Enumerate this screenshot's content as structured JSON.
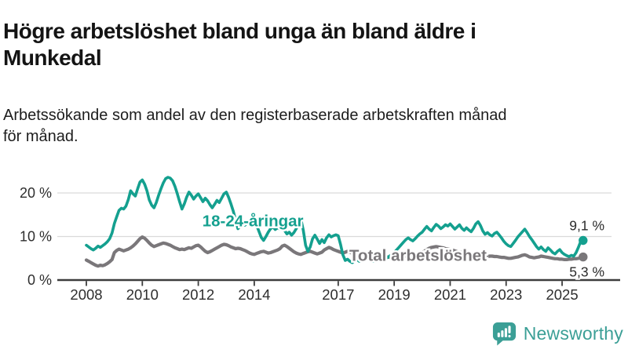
{
  "header": {
    "title_line1": "Högre arbetslöshet bland unga än bland äldre i",
    "title_line2": "Munkedal",
    "subtitle_line1": "Arbetssökande som andel av den registerbaserade arbetskraften månad",
    "subtitle_line2": "för månad."
  },
  "footer": {
    "brand": "Newsworthy",
    "logo_color": "#3b9f96"
  },
  "chart_data": {
    "type": "line",
    "title": "Högre arbetslöshet bland unga än bland äldre i Munkedal",
    "subtitle": "Arbetssökande som andel av den registerbaserade arbetskraften månad för månad.",
    "unit": "%",
    "x_range": [
      2008.0,
      2025.75
    ],
    "ylim": [
      0,
      25
    ],
    "grid": true,
    "legend_position": "inline-labels",
    "yticks": [
      {
        "value": 0,
        "label": "0 %"
      },
      {
        "value": 10,
        "label": "10 %"
      },
      {
        "value": 20,
        "label": "20 %"
      }
    ],
    "xticks": [
      {
        "value": 2008,
        "label": "2008"
      },
      {
        "value": 2010,
        "label": "2010"
      },
      {
        "value": 2012,
        "label": "2012"
      },
      {
        "value": 2014,
        "label": "2014"
      },
      {
        "value": 2017,
        "label": "2017"
      },
      {
        "value": 2019,
        "label": "2019"
      },
      {
        "value": 2021,
        "label": "2021"
      },
      {
        "value": 2023,
        "label": "2023"
      },
      {
        "value": 2025,
        "label": "2025"
      }
    ],
    "style": {
      "grid_color": "#d9d9d9",
      "axis_color": "#3c3c3c",
      "axis_text_color": "#2e2e2e",
      "annotation_color": "#2b2b2b"
    },
    "series": [
      {
        "name": "18-24-åringar",
        "color": "#14a08f",
        "line_width": 3.6,
        "label_pos": {
          "x": 2013.95,
          "y": 12.3
        },
        "end_label": "9,1 %",
        "end_value": 9.1,
        "end_label_position": "above",
        "start_year": 2008,
        "values_by_year": {
          "2008": [
            8.0,
            7.6,
            7.2,
            6.9,
            7.3,
            7.8,
            7.5,
            7.9,
            8.3,
            8.8,
            9.5,
            10.8
          ],
          "2009": [
            13.0,
            14.5,
            16.0,
            16.5,
            16.3,
            17.0,
            18.5,
            20.5,
            19.8,
            19.3,
            21.0,
            22.5
          ],
          "2010": [
            23.0,
            22.0,
            20.5,
            18.4,
            17.2,
            16.6,
            17.8,
            19.5,
            21.0,
            22.3,
            23.3,
            23.6
          ],
          "2011": [
            23.4,
            22.8,
            21.5,
            19.8,
            18.0,
            16.3,
            17.5,
            19.0,
            20.2,
            19.5,
            18.6,
            19.3
          ],
          "2012": [
            19.8,
            18.9,
            18.0,
            18.8,
            18.2,
            17.3,
            16.6,
            17.4,
            18.3,
            17.8,
            18.8,
            19.8
          ],
          "2013": [
            20.2,
            19.0,
            17.5,
            15.8,
            13.8,
            11.8,
            12.4,
            13.2,
            12.6,
            13.2,
            12.8,
            13.4
          ],
          "2014": [
            13.8,
            12.6,
            11.2,
            9.8,
            9.1,
            10.0,
            11.0,
            11.8,
            12.2,
            11.6,
            12.0,
            11.7
          ],
          "2015": [
            12.2,
            11.4,
            10.6,
            11.0,
            10.3,
            10.9,
            11.8,
            12.8,
            14.0,
            11.5,
            8.0,
            6.6
          ],
          "2016": [
            7.6,
            9.5,
            10.3,
            9.4,
            8.4,
            9.3,
            8.6,
            9.7,
            10.4,
            9.9,
            10.2,
            10.4
          ],
          "2017": [
            10.2,
            8.2,
            5.8,
            4.5,
            4.8,
            4.3,
            4.0,
            4.4,
            4.7,
            4.3,
            4.6,
            5.0
          ],
          "2018": [
            5.3,
            5.0,
            4.6,
            4.3,
            4.6,
            4.9,
            4.6,
            5.0,
            5.3,
            5.1,
            5.5,
            5.9
          ],
          "2019": [
            6.3,
            6.9,
            7.5,
            8.1,
            8.7,
            9.3,
            9.7,
            9.3,
            9.0,
            9.5,
            10.1,
            10.6
          ],
          "2020": [
            11.0,
            11.7,
            12.3,
            11.7,
            11.3,
            12.1,
            12.8,
            12.4,
            11.8,
            12.2,
            12.7,
            12.4
          ],
          "2021": [
            12.9,
            12.3,
            11.7,
            12.2,
            12.7,
            11.9,
            11.4,
            12.0,
            11.5,
            11.1,
            11.9,
            12.9
          ],
          "2022": [
            13.4,
            12.5,
            11.3,
            10.5,
            10.9,
            10.4,
            10.1,
            10.7,
            11.0,
            10.4,
            9.7,
            8.9
          ],
          "2023": [
            8.3,
            7.9,
            7.7,
            8.4,
            9.1,
            9.9,
            10.5,
            11.1,
            11.7,
            10.9,
            10.0,
            9.3
          ],
          "2024": [
            8.5,
            7.7,
            7.1,
            7.6,
            7.0,
            6.6,
            7.4,
            6.9,
            6.3,
            6.0,
            6.6,
            7.0
          ],
          "2025": [
            6.3,
            5.9,
            5.6,
            5.4,
            5.7,
            5.5,
            6.3,
            7.5,
            8.9,
            9.1
          ]
        }
      },
      {
        "name": "Total arbetslöshet",
        "color": "#7a777a",
        "line_width": 4.2,
        "label_pos": {
          "x": 2019.85,
          "y": 4.4
        },
        "end_label": "5,3 %",
        "end_value": 5.3,
        "end_label_position": "below",
        "start_year": 2008,
        "values_by_year": {
          "2008": [
            4.6,
            4.3,
            4.0,
            3.7,
            3.4,
            3.2,
            3.4,
            3.3,
            3.5,
            3.8,
            4.2,
            4.7
          ],
          "2009": [
            6.3,
            6.8,
            7.1,
            6.9,
            6.7,
            6.9,
            7.1,
            7.4,
            7.8,
            8.3,
            8.9,
            9.5
          ],
          "2010": [
            9.9,
            9.6,
            9.1,
            8.5,
            8.0,
            7.7,
            7.9,
            8.1,
            8.3,
            8.5,
            8.4,
            8.2
          ],
          "2011": [
            8.0,
            7.7,
            7.4,
            7.2,
            7.0,
            7.1,
            7.0,
            7.2,
            7.4,
            7.3,
            7.6,
            7.9
          ],
          "2012": [
            8.0,
            7.6,
            7.1,
            6.6,
            6.3,
            6.5,
            6.8,
            7.1,
            7.4,
            7.7,
            8.0,
            8.2
          ],
          "2013": [
            8.1,
            7.9,
            7.6,
            7.4,
            7.2,
            7.3,
            7.2,
            7.0,
            6.8,
            6.5,
            6.2,
            6.0
          ],
          "2014": [
            5.9,
            6.1,
            6.3,
            6.5,
            6.6,
            6.4,
            6.2,
            6.3,
            6.5,
            6.7,
            6.9,
            7.2
          ],
          "2015": [
            7.8,
            8.0,
            7.7,
            7.3,
            6.9,
            6.5,
            6.2,
            6.0,
            5.9,
            6.1,
            6.3,
            6.5
          ],
          "2016": [
            6.6,
            6.4,
            6.2,
            6.0,
            6.2,
            6.4,
            6.9,
            7.2,
            7.5,
            7.3,
            7.0,
            6.8
          ],
          "2017": [
            6.6,
            6.4,
            6.2,
            6.4,
            6.6,
            6.4,
            6.2,
            6.0,
            5.8,
            5.7,
            5.6,
            5.5
          ],
          "2018": [
            5.4,
            5.3,
            5.2,
            5.1,
            5.0,
            5.1,
            5.1,
            5.2,
            5.3,
            5.3,
            5.2,
            5.2
          ],
          "2019": [
            5.2,
            5.3,
            5.3,
            5.4,
            5.5,
            5.5,
            5.6,
            5.7,
            5.8,
            5.9,
            6.0,
            6.1
          ],
          "2020": [
            6.3,
            6.6,
            7.0,
            7.3,
            7.5,
            7.6,
            7.7,
            7.6,
            7.5,
            7.4,
            7.2,
            7.1
          ],
          "2021": [
            7.0,
            6.9,
            6.7,
            6.5,
            6.4,
            6.3,
            6.2,
            6.1,
            6.0,
            5.9,
            5.8,
            5.8
          ],
          "2022": [
            5.7,
            5.6,
            5.5,
            5.4,
            5.4,
            5.5,
            5.5,
            5.4,
            5.4,
            5.3,
            5.2,
            5.2
          ],
          "2023": [
            5.1,
            5.0,
            5.0,
            5.1,
            5.2,
            5.3,
            5.5,
            5.7,
            5.8,
            5.6,
            5.3,
            5.2
          ],
          "2024": [
            5.1,
            5.2,
            5.3,
            5.5,
            5.4,
            5.3,
            5.2,
            5.1,
            5.0,
            4.9,
            4.9,
            4.8
          ],
          "2025": [
            4.8,
            4.7,
            4.7,
            4.8,
            4.8,
            4.9,
            4.9,
            5.0,
            5.1,
            5.3
          ]
        }
      }
    ]
  }
}
